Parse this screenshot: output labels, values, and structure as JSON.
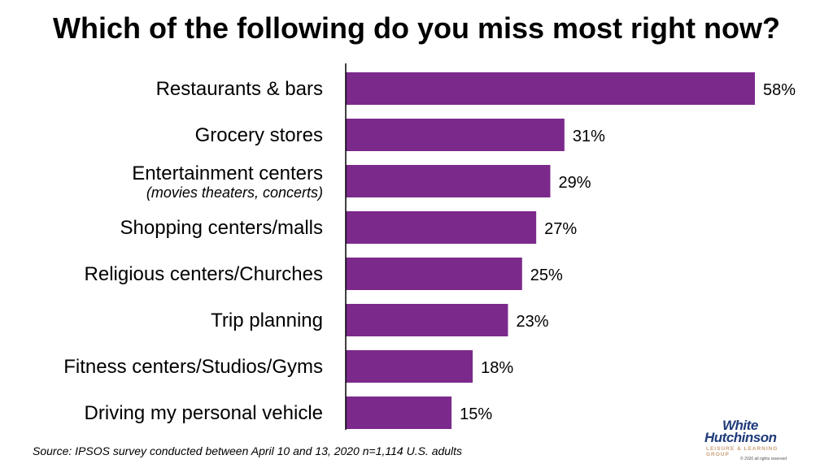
{
  "title": "Which of the following do you miss most right now?",
  "source": "Source: IPSOS survey conducted between April 10 and 13, 2020 n=1,114 U.S. adults",
  "logo": {
    "line1": "White",
    "line2": "Hutchinson",
    "line3": "LEISURE & LEARNING GROUP",
    "line4": "© 2020 all rights reserved"
  },
  "colors": {
    "bar": "#7b2a8c",
    "axis": "#000000"
  },
  "chart_data": {
    "type": "bar",
    "orientation": "horizontal",
    "categories": [
      "Restaurants & bars",
      "Grocery stores",
      "Entertainment centers",
      "Shopping centers/malls",
      "Religious centers/Churches",
      "Trip planning",
      "Fitness centers/Studios/Gyms",
      "Driving my personal vehicle"
    ],
    "category_sublabels": [
      "",
      "",
      "(movies theaters, concerts)",
      "",
      "",
      "",
      "",
      ""
    ],
    "values": [
      58,
      31,
      29,
      27,
      25,
      23,
      18,
      15
    ],
    "data_labels": [
      "58%",
      "31%",
      "29%",
      "27%",
      "25%",
      "23%",
      "18%",
      "15%"
    ],
    "unit": "%",
    "xlim": [
      0,
      58
    ],
    "grid": false,
    "legend": "none"
  }
}
